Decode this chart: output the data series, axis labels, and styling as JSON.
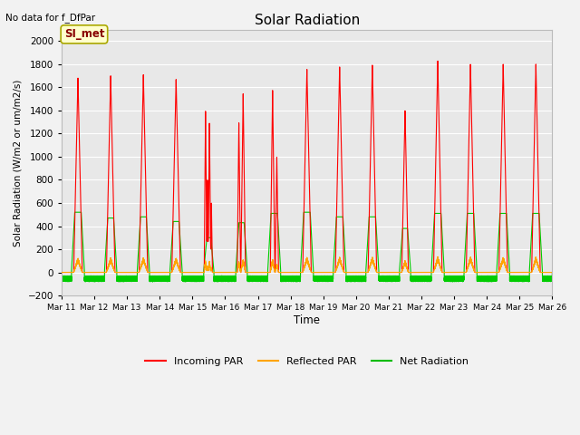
{
  "title": "Solar Radiation",
  "top_left_text": "No data for f_DfPar",
  "ylabel": "Solar Radiation (W/m2 or um/m2/s)",
  "xlabel": "Time",
  "ylim": [
    -200,
    2100
  ],
  "yticks": [
    -200,
    0,
    200,
    400,
    600,
    800,
    1000,
    1200,
    1400,
    1600,
    1800,
    2000
  ],
  "legend_labels": [
    "Incoming PAR",
    "Reflected PAR",
    "Net Radiation"
  ],
  "legend_colors": [
    "#ff0000",
    "#ffa500",
    "#00bb00"
  ],
  "box_label": "SI_met",
  "box_color": "#ffffcc",
  "box_edge_color": "#aaa800",
  "n_days": 25,
  "xlim_start": 11,
  "xlim_end": 26,
  "background_color": "#e8e8e8",
  "grid_color": "#ffffff",
  "incoming_color": "#ff0000",
  "reflected_color": "#ffa500",
  "net_color": "#00cc00",
  "fig_bg": "#f2f2f2"
}
